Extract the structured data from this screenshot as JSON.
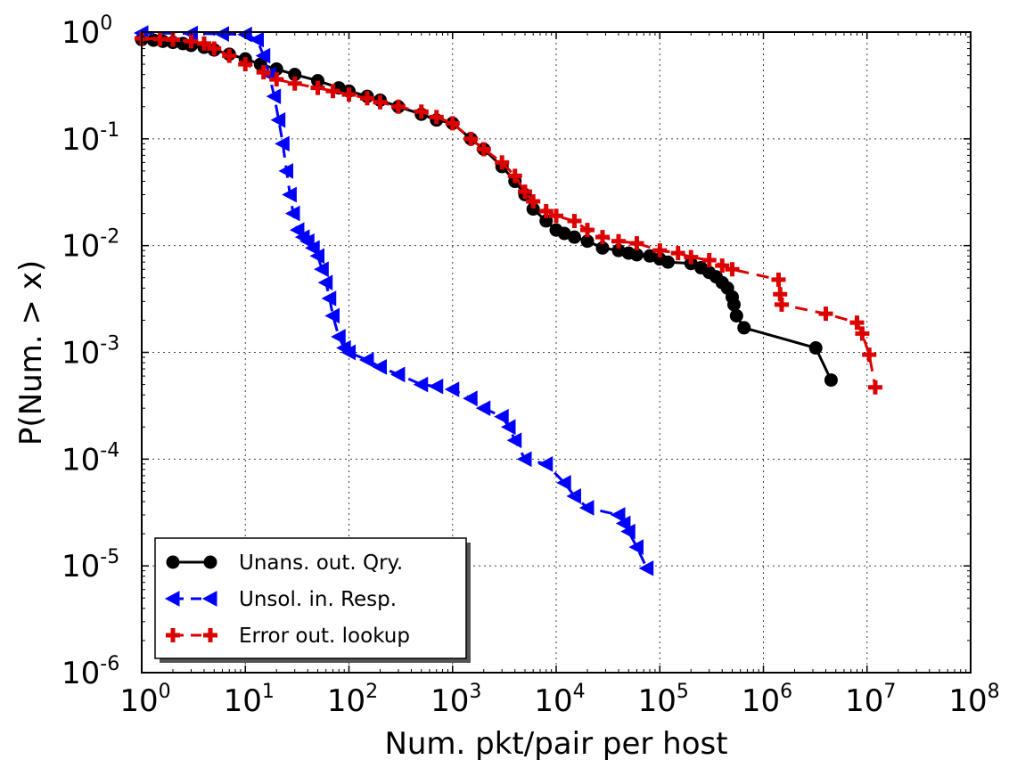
{
  "chart_data": {
    "type": "line",
    "title": "",
    "xlabel": "Num. pkt/pair per host",
    "ylabel": "P(Num. > x)",
    "xscale": "log",
    "yscale": "log",
    "xlim": [
      1,
      100000000
    ],
    "ylim": [
      1e-06,
      1
    ],
    "grid": true,
    "legend_position": "bottom-left",
    "x_ticks": [
      {
        "base": "10",
        "exp": "0"
      },
      {
        "base": "10",
        "exp": "1"
      },
      {
        "base": "10",
        "exp": "2"
      },
      {
        "base": "10",
        "exp": "3"
      },
      {
        "base": "10",
        "exp": "4"
      },
      {
        "base": "10",
        "exp": "5"
      },
      {
        "base": "10",
        "exp": "6"
      },
      {
        "base": "10",
        "exp": "7"
      },
      {
        "base": "10",
        "exp": "8"
      }
    ],
    "y_ticks": [
      {
        "base": "10",
        "exp": "0"
      },
      {
        "base": "10",
        "exp": "-1"
      },
      {
        "base": "10",
        "exp": "-2"
      },
      {
        "base": "10",
        "exp": "-3"
      },
      {
        "base": "10",
        "exp": "-4"
      },
      {
        "base": "10",
        "exp": "-5"
      },
      {
        "base": "10",
        "exp": "-6"
      }
    ],
    "series": [
      {
        "name": "Unans. out. Qry.",
        "color": "#000000",
        "linestyle": "solid",
        "marker": "circle",
        "x": [
          1,
          1.3,
          1.6,
          2,
          2.5,
          3,
          4,
          5,
          7,
          10,
          14,
          20,
          30,
          50,
          80,
          100,
          150,
          200,
          300,
          500,
          700,
          1000,
          1500,
          2000,
          3000,
          4000,
          5000,
          6000,
          8000,
          10000,
          12000,
          15000,
          20000,
          28000,
          40000,
          50000,
          60000,
          80000,
          100000,
          120000,
          200000,
          250000,
          300000,
          350000,
          400000,
          450000,
          500000,
          520000,
          550000,
          650000,
          3200000,
          4500000
        ],
        "values": [
          0.85,
          0.84,
          0.82,
          0.8,
          0.78,
          0.75,
          0.72,
          0.68,
          0.62,
          0.56,
          0.5,
          0.45,
          0.4,
          0.35,
          0.3,
          0.28,
          0.25,
          0.23,
          0.2,
          0.17,
          0.15,
          0.14,
          0.1,
          0.08,
          0.055,
          0.04,
          0.03,
          0.022,
          0.017,
          0.014,
          0.013,
          0.012,
          0.011,
          0.0095,
          0.009,
          0.0085,
          0.0082,
          0.008,
          0.0075,
          0.007,
          0.0068,
          0.0062,
          0.0056,
          0.0051,
          0.0045,
          0.004,
          0.0033,
          0.0028,
          0.0022,
          0.0017,
          0.0011,
          0.00055
        ]
      },
      {
        "name": "Unsol. in. Resp.",
        "color": "#0000ff",
        "linestyle": "dashed",
        "marker": "triangle-left",
        "x": [
          1,
          3,
          6,
          10,
          13,
          15,
          17,
          19,
          21,
          23,
          25,
          27,
          29,
          32,
          36,
          40,
          45,
          50,
          55,
          60,
          65,
          70,
          80,
          90,
          100,
          150,
          200,
          300,
          500,
          700,
          1000,
          1500,
          2000,
          3000,
          3500,
          4000,
          5000,
          8000,
          12000,
          15000,
          20000,
          40000,
          45000,
          50000,
          60000,
          75000
        ],
        "values": [
          0.98,
          0.97,
          0.96,
          0.95,
          0.85,
          0.6,
          0.4,
          0.25,
          0.15,
          0.09,
          0.05,
          0.03,
          0.02,
          0.014,
          0.012,
          0.011,
          0.0095,
          0.008,
          0.006,
          0.0045,
          0.0032,
          0.0022,
          0.0014,
          0.0011,
          0.001,
          0.00085,
          0.00073,
          0.00062,
          0.0005,
          0.00048,
          0.00045,
          0.00037,
          0.0003,
          0.00025,
          0.0002,
          0.00015,
          0.0001,
          9e-05,
          6e-05,
          4.5e-05,
          3.5e-05,
          3e-05,
          2.5e-05,
          2.1e-05,
          1.5e-05,
          9.5e-06
        ]
      },
      {
        "name": "Error out. lookup",
        "color": "#dd0000",
        "linestyle": "dashed",
        "marker": "plus",
        "x": [
          1,
          1.5,
          2,
          3,
          4,
          5,
          7,
          10,
          15,
          20,
          30,
          50,
          70,
          100,
          150,
          200,
          300,
          500,
          700,
          1000,
          1500,
          2000,
          3000,
          4000,
          5000,
          6000,
          8000,
          10000,
          15000,
          20000,
          28000,
          40000,
          60000,
          100000,
          150000,
          200000,
          300000,
          400000,
          500000,
          1400000,
          1450000,
          1500000,
          4000000,
          8000000,
          9000000,
          10500000,
          12000000
        ],
        "values": [
          0.87,
          0.86,
          0.85,
          0.82,
          0.78,
          0.7,
          0.6,
          0.5,
          0.42,
          0.36,
          0.33,
          0.3,
          0.28,
          0.26,
          0.24,
          0.22,
          0.2,
          0.18,
          0.16,
          0.14,
          0.1,
          0.08,
          0.06,
          0.045,
          0.032,
          0.026,
          0.021,
          0.019,
          0.017,
          0.014,
          0.012,
          0.011,
          0.0105,
          0.009,
          0.0085,
          0.0078,
          0.0073,
          0.0065,
          0.006,
          0.0048,
          0.0035,
          0.0028,
          0.0023,
          0.0019,
          0.0015,
          0.00095,
          0.00047
        ]
      }
    ]
  }
}
